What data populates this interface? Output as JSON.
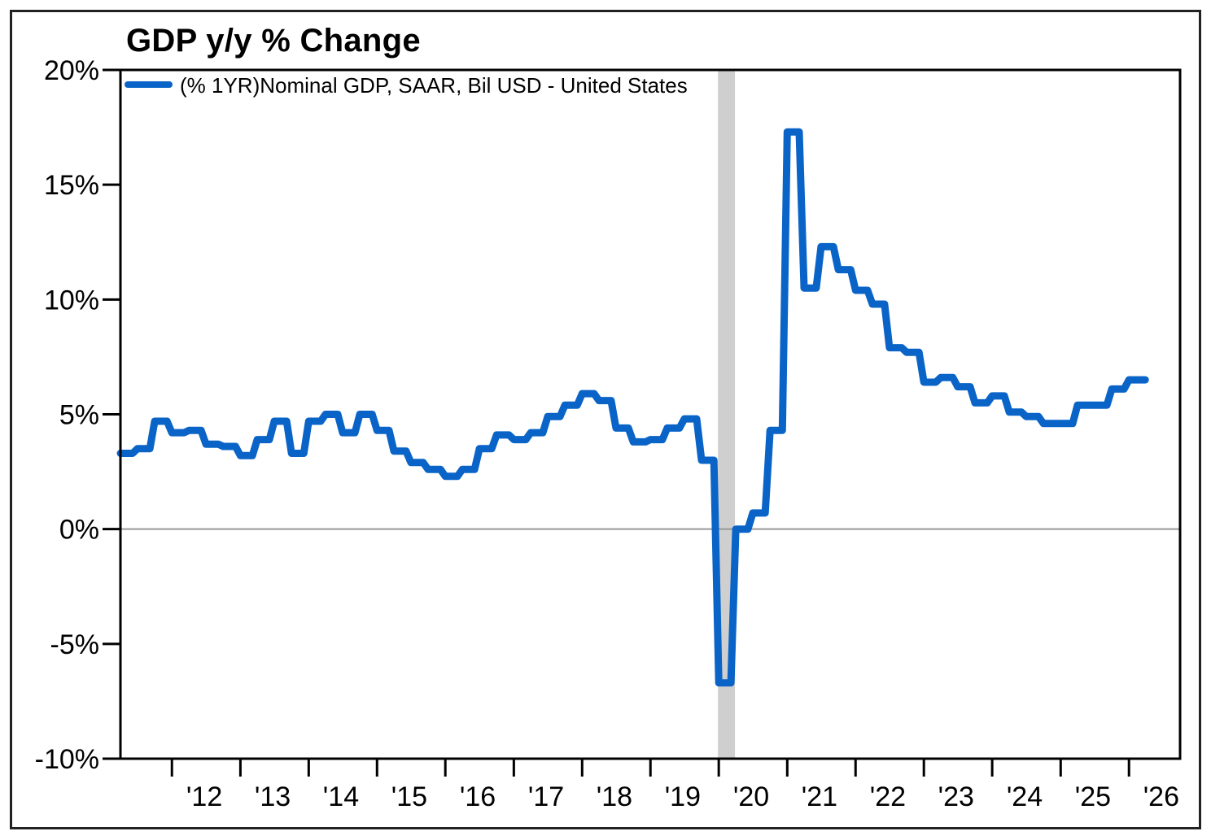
{
  "chart_data": {
    "type": "line",
    "title": "GDP y/y % Change",
    "series": [
      {
        "name": "(% 1YR)Nominal GDP, SAAR, Bil USD - United States",
        "color": "#0a64c8",
        "points": [
          [
            "2011-04-01",
            3.3
          ],
          [
            "2011-07-01",
            3.5
          ],
          [
            "2011-10-01",
            4.7
          ],
          [
            "2012-01-01",
            4.2
          ],
          [
            "2012-04-01",
            4.3
          ],
          [
            "2012-07-01",
            3.7
          ],
          [
            "2012-10-01",
            3.6
          ],
          [
            "2013-01-01",
            3.2
          ],
          [
            "2013-04-01",
            3.9
          ],
          [
            "2013-07-01",
            4.7
          ],
          [
            "2013-10-01",
            3.3
          ],
          [
            "2014-01-01",
            4.7
          ],
          [
            "2014-04-01",
            5.0
          ],
          [
            "2014-07-01",
            4.2
          ],
          [
            "2014-10-01",
            5.0
          ],
          [
            "2015-01-01",
            4.3
          ],
          [
            "2015-04-01",
            3.4
          ],
          [
            "2015-07-01",
            2.9
          ],
          [
            "2015-10-01",
            2.6
          ],
          [
            "2016-01-01",
            2.3
          ],
          [
            "2016-04-01",
            2.6
          ],
          [
            "2016-07-01",
            3.5
          ],
          [
            "2016-10-01",
            4.1
          ],
          [
            "2017-01-01",
            3.9
          ],
          [
            "2017-04-01",
            4.2
          ],
          [
            "2017-07-01",
            4.9
          ],
          [
            "2017-10-01",
            5.4
          ],
          [
            "2018-01-01",
            5.9
          ],
          [
            "2018-04-01",
            5.6
          ],
          [
            "2018-07-01",
            4.4
          ],
          [
            "2018-10-01",
            3.8
          ],
          [
            "2019-01-01",
            3.9
          ],
          [
            "2019-04-01",
            4.4
          ],
          [
            "2019-07-01",
            4.8
          ],
          [
            "2019-10-01",
            3.0
          ],
          [
            "2020-01-01",
            -6.7
          ],
          [
            "2020-04-01",
            0.0
          ],
          [
            "2020-07-01",
            0.7
          ],
          [
            "2020-10-01",
            4.3
          ],
          [
            "2021-01-01",
            17.3
          ],
          [
            "2021-04-01",
            10.5
          ],
          [
            "2021-07-01",
            12.3
          ],
          [
            "2021-10-01",
            11.3
          ],
          [
            "2022-01-01",
            10.4
          ],
          [
            "2022-04-01",
            9.8
          ],
          [
            "2022-07-01",
            7.9
          ],
          [
            "2022-10-01",
            7.7
          ],
          [
            "2023-01-01",
            6.4
          ],
          [
            "2023-04-01",
            6.6
          ],
          [
            "2023-07-01",
            6.2
          ],
          [
            "2023-10-01",
            5.5
          ],
          [
            "2024-01-01",
            5.8
          ],
          [
            "2024-04-01",
            5.1
          ],
          [
            "2024-07-01",
            4.9
          ],
          [
            "2024-10-01",
            4.6
          ],
          [
            "2025-01-01",
            4.6
          ],
          [
            "2025-04-01",
            5.4
          ],
          [
            "2025-07-01",
            5.4
          ],
          [
            "2025-10-01",
            6.1
          ],
          [
            "2026-01-01",
            6.5
          ]
        ]
      }
    ],
    "xlim": [
      "2011-04-01",
      "2026-10-01"
    ],
    "ylim": [
      -10,
      20
    ],
    "ytick_values": [
      -10,
      -5,
      0,
      5,
      10,
      15,
      20
    ],
    "ytick_labels": [
      "-10%",
      "-5%",
      "0%",
      "5%",
      "10%",
      "15%",
      "20%"
    ],
    "xtick_labels": [
      "'12",
      "'13",
      "'14",
      "'15",
      "'16",
      "'17",
      "'18",
      "'19",
      "'20",
      "'21",
      "'22",
      "'23",
      "'24",
      "'25",
      "'26"
    ],
    "xtick_years": [
      2012,
      2013,
      2014,
      2015,
      2016,
      2017,
      2018,
      2019,
      2020,
      2021,
      2022,
      2023,
      2024,
      2025,
      2026
    ],
    "recession_band": [
      "2020-01-01",
      "2020-04-01"
    ],
    "zero_line": true,
    "legend_position": "top-left",
    "grid": false
  }
}
